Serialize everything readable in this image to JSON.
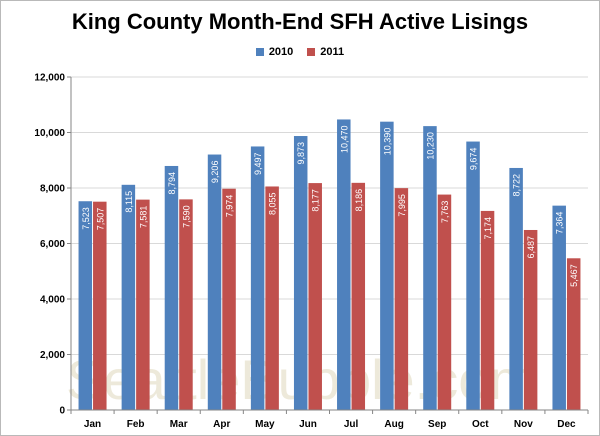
{
  "colors": {
    "series_2010": "#4f81bd",
    "series_2011": "#c0504d",
    "grid": "#d9d9d9",
    "axis": "#868686",
    "watermark": "#d8cfae"
  },
  "watermark_text": "SeattleBubble.com",
  "chart_data": {
    "type": "bar",
    "title": "King County Month-End SFH Active Lisings",
    "xlabel": "",
    "ylabel": "",
    "ylim": [
      0,
      12000
    ],
    "yticks": [
      "0",
      "2,000",
      "4,000",
      "6,000",
      "8,000",
      "10,000",
      "12,000"
    ],
    "grid": true,
    "legend_position": "top-center",
    "categories": [
      "Jan",
      "Feb",
      "Mar",
      "Apr",
      "May",
      "Jun",
      "Jul",
      "Aug",
      "Sep",
      "Oct",
      "Nov",
      "Dec"
    ],
    "series": [
      {
        "name": "2010",
        "values": [
          7523,
          8115,
          8794,
          9206,
          9497,
          9873,
          10470,
          10390,
          10230,
          9674,
          8722,
          7364
        ],
        "labels": [
          "7,523",
          "8,115",
          "8,794",
          "9,206",
          "9,497",
          "9,873",
          "10,470",
          "10,390",
          "10,230",
          "9,674",
          "8,722",
          "7,364"
        ]
      },
      {
        "name": "2011",
        "values": [
          7507,
          7581,
          7590,
          7974,
          8055,
          8177,
          8186,
          7995,
          7763,
          7174,
          6487,
          5467
        ],
        "labels": [
          "7,507",
          "7,581",
          "7,590",
          "7,974",
          "8,055",
          "8,177",
          "8,186",
          "7,995",
          "7,763",
          "7,174",
          "6,487",
          "5,467"
        ]
      }
    ]
  }
}
